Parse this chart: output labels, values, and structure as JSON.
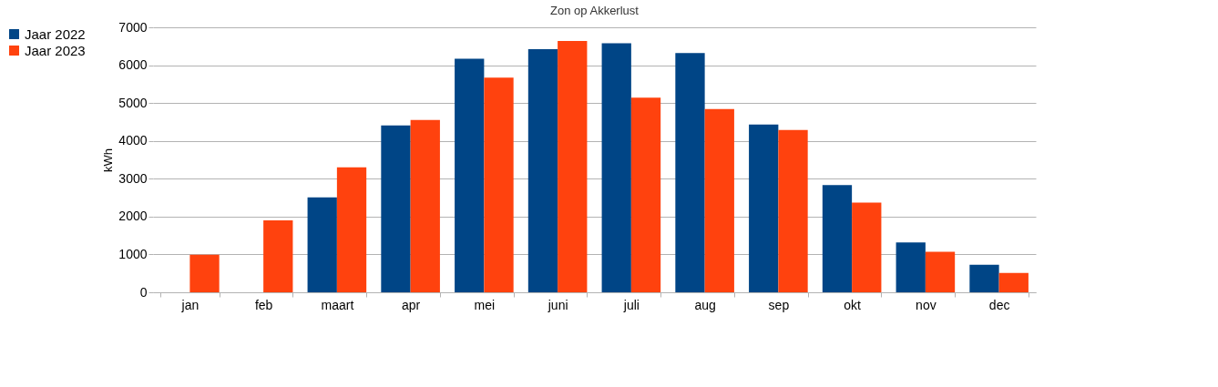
{
  "chart_data": {
    "type": "bar",
    "title": "Zon op Akkerlust",
    "ylabel": "kWh",
    "categories": [
      "jan",
      "feb",
      "maart",
      "apr",
      "mei",
      "juni",
      "juli",
      "aug",
      "sep",
      "okt",
      "nov",
      "dec"
    ],
    "series": [
      {
        "name": "Jaar 2022",
        "color": "#004586",
        "values": [
          null,
          null,
          2510,
          4410,
          6170,
          6420,
          6580,
          6320,
          4430,
          2830,
          1320,
          730
        ]
      },
      {
        "name": "Jaar 2023",
        "color": "#ff420e",
        "values": [
          990,
          1900,
          3300,
          4550,
          5670,
          6640,
          5140,
          4840,
          4290,
          2370,
          1070,
          510
        ]
      }
    ],
    "ylim": [
      0,
      7000
    ],
    "yticks": [
      0,
      1000,
      2000,
      3000,
      4000,
      5000,
      6000,
      7000
    ],
    "grid": "y",
    "legend": "top left"
  }
}
